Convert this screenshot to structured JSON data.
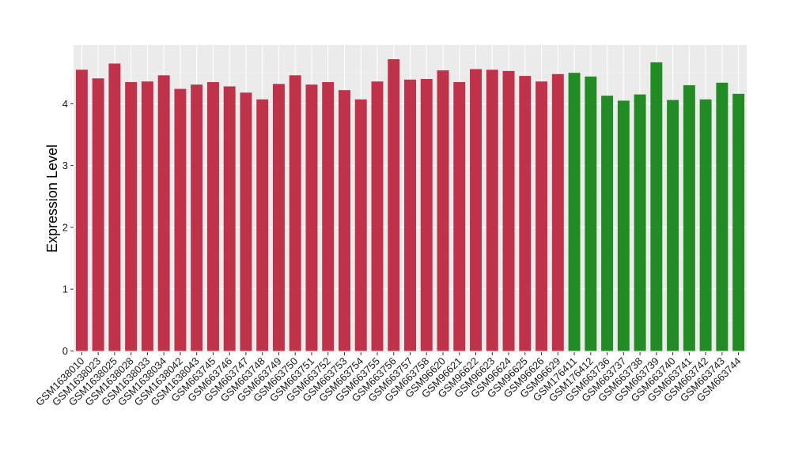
{
  "chart_data": {
    "type": "bar",
    "title": "",
    "xlabel": "",
    "ylabel": "Expression Level",
    "ylim": [
      -0.02,
      4.95
    ],
    "yticks": [
      0,
      1,
      2,
      3,
      4
    ],
    "grid": true,
    "legend": "none",
    "colors": {
      "panel_background": "#ebebeb",
      "grid_major": "#ffffff",
      "grid_minor": "#f5f5f5",
      "group1": "#c0314a",
      "group2": "#238b23"
    },
    "categories": [
      "GSM1638010",
      "GSM1638023",
      "GSM1638025",
      "GSM1638028",
      "GSM1638033",
      "GSM1638034",
      "GSM1638042",
      "GSM1638043",
      "GSM663745",
      "GSM663746",
      "GSM663747",
      "GSM663748",
      "GSM663749",
      "GSM663750",
      "GSM663751",
      "GSM663752",
      "GSM663753",
      "GSM663754",
      "GSM663755",
      "GSM663756",
      "GSM663757",
      "GSM663758",
      "GSM96620",
      "GSM96621",
      "GSM96622",
      "GSM96623",
      "GSM96624",
      "GSM96625",
      "GSM96626",
      "GSM96629",
      "GSM176411",
      "GSM176412",
      "GSM663736",
      "GSM663737",
      "GSM663738",
      "GSM663739",
      "GSM663740",
      "GSM663741",
      "GSM663742",
      "GSM663743",
      "GSM663744"
    ],
    "values": [
      4.55,
      4.41,
      4.65,
      4.35,
      4.36,
      4.46,
      4.24,
      4.31,
      4.35,
      4.28,
      4.18,
      4.07,
      4.32,
      4.46,
      4.31,
      4.35,
      4.22,
      4.07,
      4.36,
      4.72,
      4.39,
      4.4,
      4.54,
      4.35,
      4.56,
      4.55,
      4.53,
      4.45,
      4.36,
      4.48,
      4.5,
      4.44,
      4.13,
      4.05,
      4.15,
      4.67,
      4.06,
      4.3,
      4.07,
      4.34,
      4.16
    ],
    "groups": [
      1,
      1,
      1,
      1,
      1,
      1,
      1,
      1,
      1,
      1,
      1,
      1,
      1,
      1,
      1,
      1,
      1,
      1,
      1,
      1,
      1,
      1,
      1,
      1,
      1,
      1,
      1,
      1,
      1,
      1,
      2,
      2,
      2,
      2,
      2,
      2,
      2,
      2,
      2,
      2,
      2
    ]
  }
}
